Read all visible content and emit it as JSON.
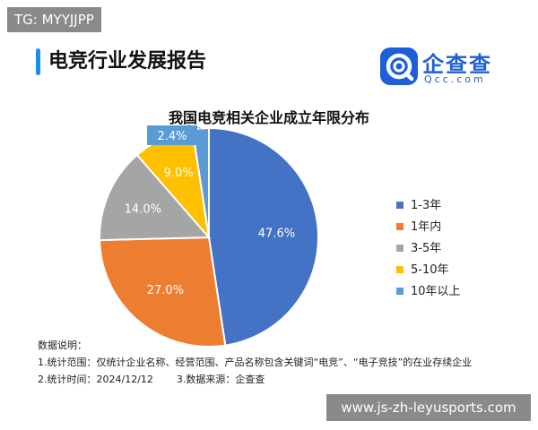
{
  "watermark_tag": "TG: MYYJJPP",
  "report_title": "电竞行业发展报告",
  "logo": {
    "name": "企查查",
    "sub": "Qcc.com",
    "brand_color": "#1d5fd6"
  },
  "chart_data": {
    "type": "pie",
    "title": "我国电竞相关企业成立年限分布",
    "slices": [
      {
        "label": "1-3年",
        "value": 47.6,
        "display": "47.6%",
        "color": "#4472c4"
      },
      {
        "label": "1年内",
        "value": 27.0,
        "display": "27.0%",
        "color": "#ed7d31"
      },
      {
        "label": "3-5年",
        "value": 14.0,
        "display": "14.0%",
        "color": "#a5a5a5"
      },
      {
        "label": "5-10年",
        "value": 9.0,
        "display": "9.0%",
        "color": "#ffc000"
      },
      {
        "label": "10年以上",
        "value": 2.4,
        "display": "2.4%",
        "color": "#5b9bd5"
      }
    ],
    "legend_position": "right"
  },
  "notes": {
    "heading": "数据说明：",
    "line1": "1.统计范围：仅统计企业名称、经营范围、产品名称包含关键词“电竞”、“电子竞技”的在业存续企业",
    "line2_a": "2.统计时间：2024/12/12",
    "line2_b": "3.数据来源：企查查"
  },
  "footer_url": "www.js-zh-leyusports.com"
}
